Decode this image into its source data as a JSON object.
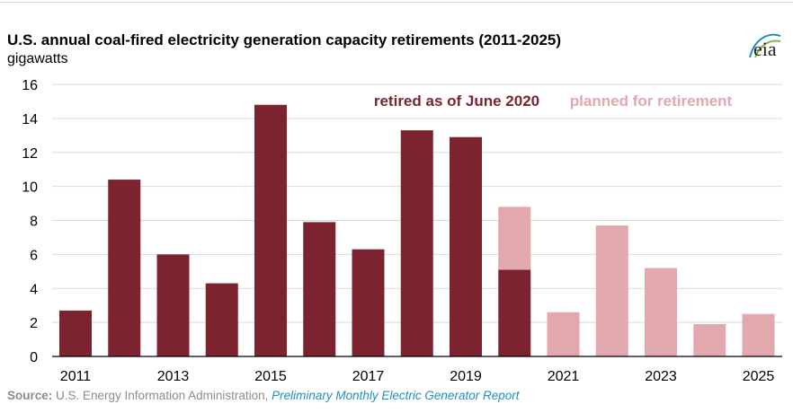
{
  "title": "U.S. annual coal-fired electricity generation capacity retirements (2011-2025)",
  "unit_label": "gigawatts",
  "logo_text": "eia",
  "source": {
    "label": "Source:",
    "org": " U.S. Energy Information Administration, ",
    "report": "Preliminary Monthly Electric Generator Report"
  },
  "chart_data": {
    "type": "bar",
    "stacked": true,
    "categories": [
      "2011",
      "2012",
      "2013",
      "2014",
      "2015",
      "2016",
      "2017",
      "2018",
      "2019",
      "2020",
      "2021",
      "2022",
      "2023",
      "2024",
      "2025"
    ],
    "tick_labels": [
      "2011",
      "2013",
      "2015",
      "2017",
      "2019",
      "2021",
      "2023",
      "2025"
    ],
    "series": [
      {
        "name": "retired as of June 2020",
        "color": "#7b2430",
        "values": [
          2.7,
          10.4,
          6.0,
          4.3,
          14.8,
          7.9,
          6.3,
          13.3,
          12.9,
          5.1,
          0,
          0,
          0,
          0,
          0
        ]
      },
      {
        "name": "planned for retirement",
        "color": "#e3a7ae",
        "values": [
          0,
          0,
          0,
          0,
          0,
          0,
          0,
          0,
          0,
          3.7,
          2.6,
          7.7,
          5.2,
          1.9,
          2.5
        ]
      }
    ],
    "ylim": [
      0,
      16
    ],
    "yticks": [
      0,
      2,
      4,
      6,
      8,
      10,
      12,
      14,
      16
    ],
    "grid": true,
    "legend_position": "top-right"
  }
}
